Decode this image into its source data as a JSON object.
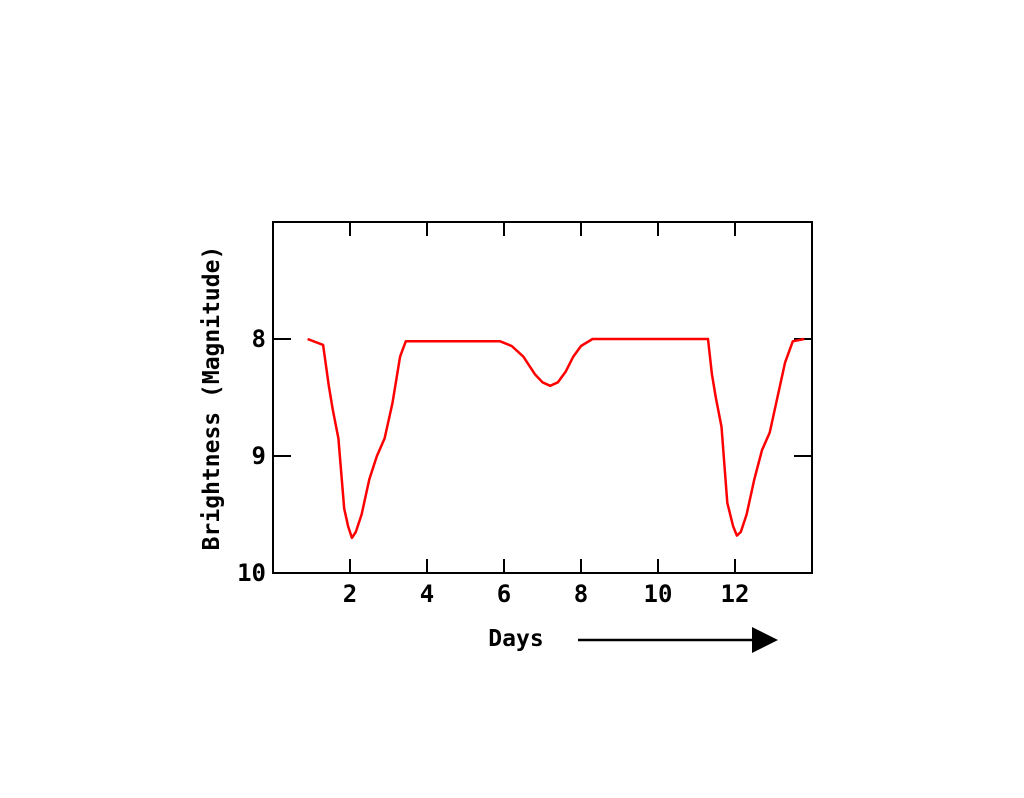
{
  "chart_data": {
    "type": "line",
    "xlabel": "Days",
    "ylabel": "Brightness (Magnitude)",
    "xlim": [
      0,
      14
    ],
    "ylim": [
      7,
      10
    ],
    "y_inverted": true,
    "x_ticks": [
      2,
      4,
      6,
      8,
      10,
      12
    ],
    "y_ticks": [
      8,
      9,
      10
    ],
    "x_tick_labels": [
      "2",
      "4",
      "6",
      "8",
      "10",
      "12"
    ],
    "y_tick_labels": [
      "8",
      "9",
      "10"
    ],
    "grid": false,
    "line_color": "#ff0000",
    "series": [
      {
        "x": [
          0.9,
          1.3,
          1.45,
          1.55,
          1.7,
          1.85,
          1.95,
          2.05,
          2.15,
          2.3,
          2.5,
          2.7,
          2.9,
          3.1,
          3.3,
          3.45,
          4.0,
          5.0,
          5.9,
          6.2,
          6.5,
          6.8,
          7.0,
          7.2,
          7.4,
          7.6,
          7.8,
          8.0,
          8.3,
          8.5,
          9.5,
          10.5,
          11.3,
          11.4,
          11.5,
          11.65,
          11.8,
          11.95,
          12.05,
          12.15,
          12.3,
          12.5,
          12.7,
          12.9,
          13.1,
          13.3,
          13.5,
          13.8
        ],
        "y": [
          8.0,
          8.05,
          8.4,
          8.6,
          8.85,
          9.45,
          9.6,
          9.7,
          9.65,
          9.5,
          9.2,
          9.0,
          8.85,
          8.55,
          8.15,
          8.02,
          8.02,
          8.02,
          8.02,
          8.06,
          8.15,
          8.3,
          8.37,
          8.4,
          8.37,
          8.28,
          8.15,
          8.06,
          8.0,
          8.0,
          8.0,
          8.0,
          8.0,
          8.3,
          8.5,
          8.75,
          9.4,
          9.6,
          9.68,
          9.65,
          9.5,
          9.2,
          8.95,
          8.8,
          8.5,
          8.2,
          8.02,
          8.0
        ]
      }
    ]
  }
}
